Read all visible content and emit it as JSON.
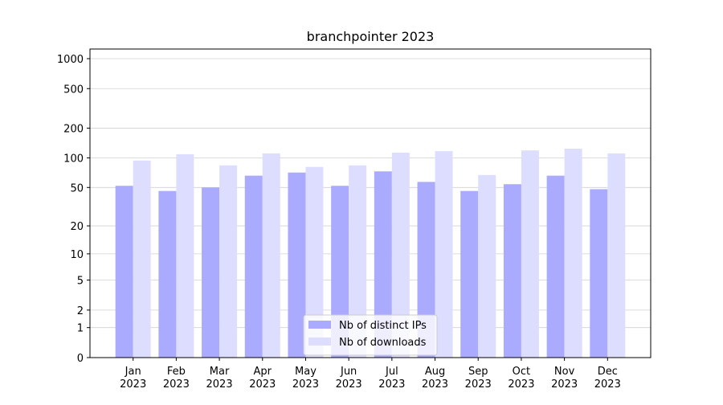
{
  "chart_data": {
    "type": "bar",
    "title": "branchpointer 2023",
    "categories": [
      [
        "Jan",
        "2023"
      ],
      [
        "Feb",
        "2023"
      ],
      [
        "Mar",
        "2023"
      ],
      [
        "Apr",
        "2023"
      ],
      [
        "May",
        "2023"
      ],
      [
        "Jun",
        "2023"
      ],
      [
        "Jul",
        "2023"
      ],
      [
        "Aug",
        "2023"
      ],
      [
        "Sep",
        "2023"
      ],
      [
        "Oct",
        "2023"
      ],
      [
        "Nov",
        "2023"
      ],
      [
        "Dec",
        "2023"
      ]
    ],
    "series": [
      {
        "name": "Nb of distinct IPs",
        "color": "#aaaaff",
        "values": [
          52,
          46,
          50,
          66,
          71,
          52,
          73,
          57,
          46,
          54,
          66,
          48
        ]
      },
      {
        "name": "Nb of downloads",
        "color": "#ddddff",
        "values": [
          94,
          109,
          84,
          111,
          81,
          84,
          113,
          117,
          67,
          119,
          124,
          111
        ]
      }
    ],
    "yscale": "symlog",
    "ylim": [
      0,
      1250
    ],
    "yticks": [
      0,
      1,
      2,
      5,
      10,
      20,
      50,
      100,
      200,
      500,
      1000
    ],
    "grid": true,
    "legend": "lower center"
  }
}
